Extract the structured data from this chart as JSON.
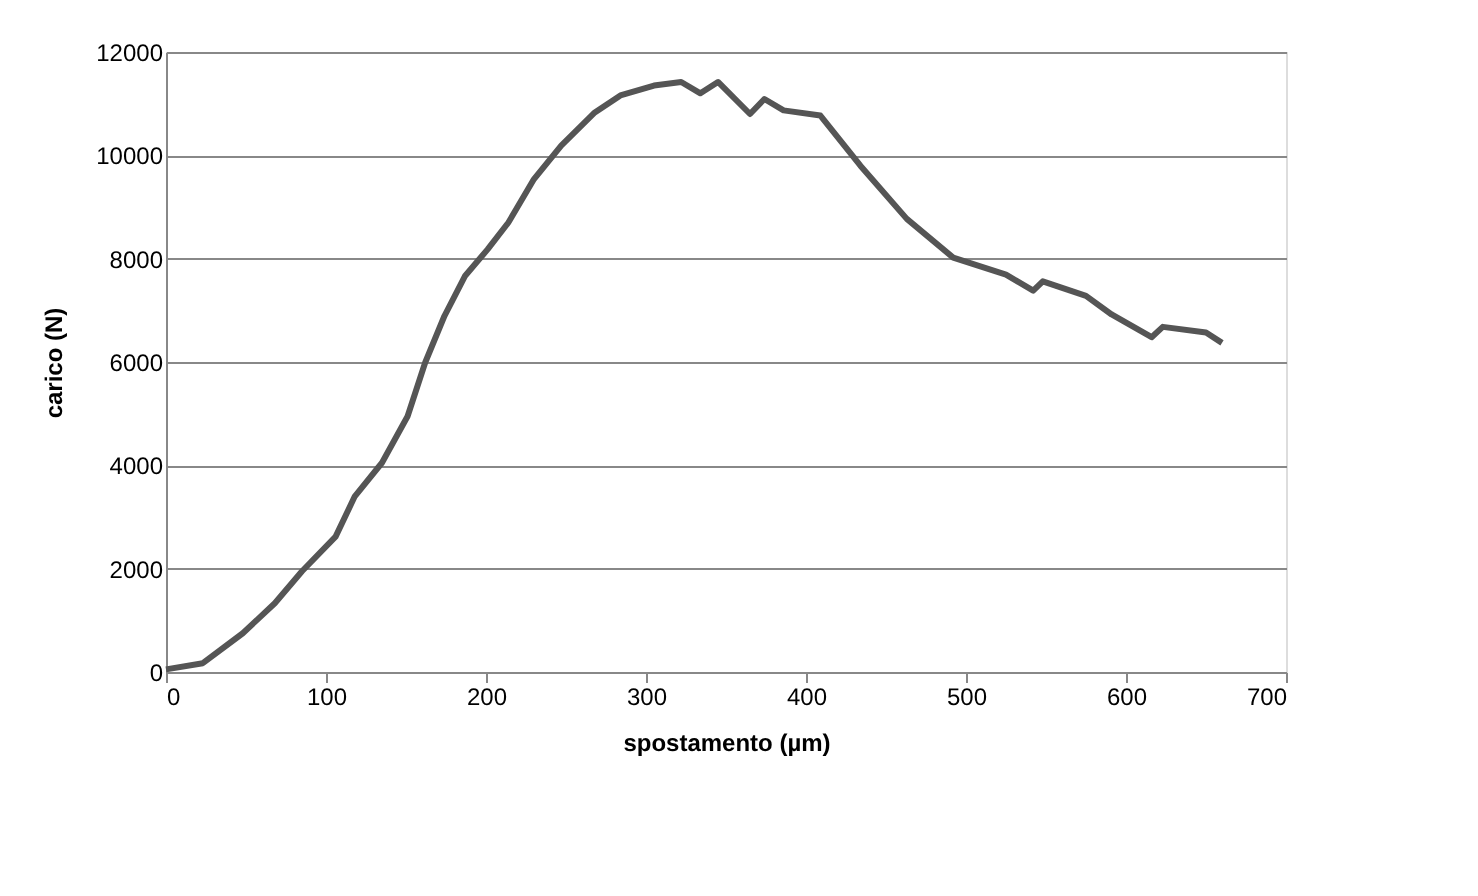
{
  "chart_data": {
    "type": "line",
    "xlabel": "spostamento (µm)",
    "ylabel": "carico (N)",
    "xlim": [
      0,
      700
    ],
    "xticks": [
      0,
      100,
      200,
      300,
      400,
      500,
      600,
      700
    ],
    "ylim": [
      0,
      12000
    ],
    "yticks": [
      0,
      2000,
      4000,
      6000,
      8000,
      10000,
      12000
    ],
    "grid": "y",
    "legend": false,
    "marker": "none",
    "line_style": "solid",
    "series": [
      {
        "color": "#555555",
        "x": [
          0,
          23,
          48,
          68,
          85,
          106,
          118,
          135,
          151,
          162,
          174,
          187,
          201,
          214,
          230,
          247,
          268,
          284,
          305,
          322,
          334,
          345,
          365,
          374,
          386,
          409,
          434,
          463,
          492,
          525,
          542,
          548,
          575,
          591,
          616,
          623,
          650,
          660
        ],
        "values": [
          50,
          170,
          750,
          1330,
          1950,
          2620,
          3400,
          4050,
          4950,
          5990,
          6890,
          7670,
          8180,
          8700,
          9540,
          10190,
          10830,
          11160,
          11350,
          11420,
          11200,
          11420,
          10800,
          11090,
          10870,
          10770,
          9800,
          8770,
          8020,
          7690,
          7380,
          7560,
          7280,
          6920,
          6480,
          6680,
          6570,
          6370
        ]
      }
    ]
  }
}
